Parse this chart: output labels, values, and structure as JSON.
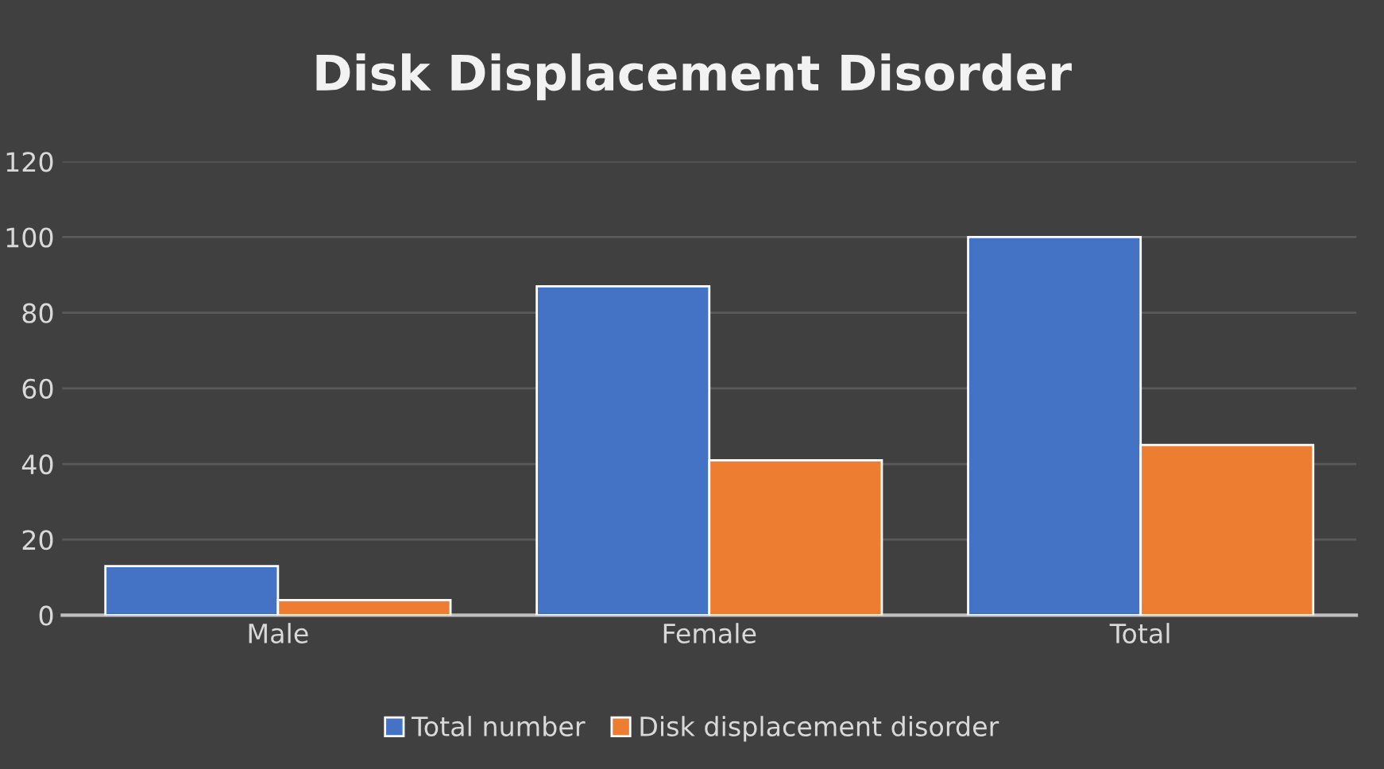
{
  "chart_data": {
    "type": "bar",
    "title": "Disk Displacement Disorder",
    "categories": [
      "Male",
      "Female",
      "Total"
    ],
    "series": [
      {
        "name": "Total number",
        "color": "#4472c4",
        "values": [
          13,
          87,
          100
        ]
      },
      {
        "name": "Disk displacement disorder",
        "color": "#ed7d31",
        "values": [
          4,
          41,
          45
        ]
      }
    ],
    "ylim": [
      0,
      120
    ],
    "yticks": [
      0,
      20,
      40,
      60,
      80,
      100,
      120
    ],
    "grid": "y",
    "legend": "bottom"
  }
}
